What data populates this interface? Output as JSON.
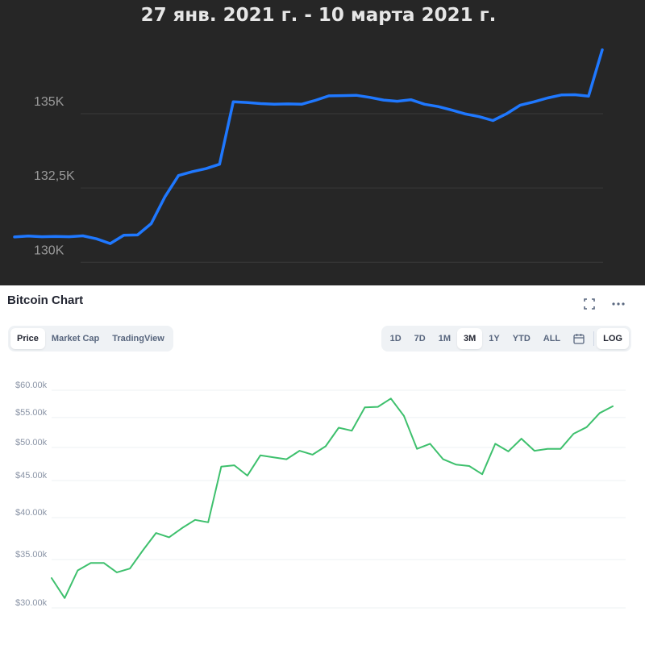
{
  "top_chart": {
    "title": "27 янв. 2021 г. - 10 марта 2021 г.",
    "colors": {
      "background": "#262626",
      "line": "#1f78ff",
      "grid": "#3a3a3a"
    }
  },
  "bottom_widget": {
    "title": "Bitcoin Chart",
    "view_tabs": [
      {
        "label": "Price",
        "active": true
      },
      {
        "label": "Market Cap",
        "active": false
      },
      {
        "label": "TradingView",
        "active": false
      }
    ],
    "range_tabs": [
      {
        "label": "1D",
        "active": false
      },
      {
        "label": "7D",
        "active": false
      },
      {
        "label": "1M",
        "active": false
      },
      {
        "label": "3M",
        "active": true
      },
      {
        "label": "1Y",
        "active": false
      },
      {
        "label": "YTD",
        "active": false
      },
      {
        "label": "ALL",
        "active": false
      }
    ],
    "scale_button": "LOG",
    "icons": {
      "fullscreen": "fullscreen-icon",
      "more": "more-icon",
      "calendar": "calendar-icon"
    },
    "colors": {
      "line": "#3ec06d",
      "grid": "#eef0f3"
    }
  },
  "chart_data": [
    {
      "type": "line",
      "title": "27 янв. 2021 г. - 10 марта 2021 г.",
      "y_ticks": [
        {
          "label": "135K",
          "value": 135000
        },
        {
          "label": "132,5K",
          "value": 132500
        },
        {
          "label": "130K",
          "value": 130000
        }
      ],
      "ylim": [
        129600,
        137200
      ],
      "grid": true,
      "values": [
        130850,
        130880,
        130860,
        130870,
        130860,
        130890,
        130790,
        130630,
        130910,
        130920,
        131300,
        132200,
        132920,
        133050,
        133150,
        133300,
        135400,
        135380,
        135340,
        135320,
        135330,
        135320,
        135450,
        135600,
        135610,
        135620,
        135550,
        135460,
        135420,
        135470,
        135320,
        135240,
        135120,
        134990,
        134900,
        134770,
        135000,
        135290,
        135400,
        135530,
        135630,
        135640,
        135590,
        137150
      ]
    },
    {
      "type": "line",
      "y_ticks": [
        "$60.00k",
        "$55.00k",
        "$50.00k",
        "$45.00k",
        "$40.00k",
        "$35.00k",
        "$30.00k"
      ],
      "y_tick_values": [
        60000,
        55000,
        50000,
        45000,
        40000,
        35000,
        30000
      ],
      "scale": "log",
      "grid": true,
      "values": [
        32400,
        30400,
        33200,
        34000,
        34000,
        33000,
        33400,
        35400,
        37400,
        36900,
        38000,
        39000,
        38700,
        46200,
        46400,
        44900,
        47900,
        47600,
        47300,
        48600,
        48000,
        49300,
        52300,
        51800,
        55800,
        55900,
        57400,
        54300,
        48900,
        49700,
        47300,
        46500,
        46300,
        45100,
        49700,
        48500,
        50500,
        48600,
        48900,
        48900,
        51300,
        52400,
        54800,
        56000
      ]
    }
  ]
}
